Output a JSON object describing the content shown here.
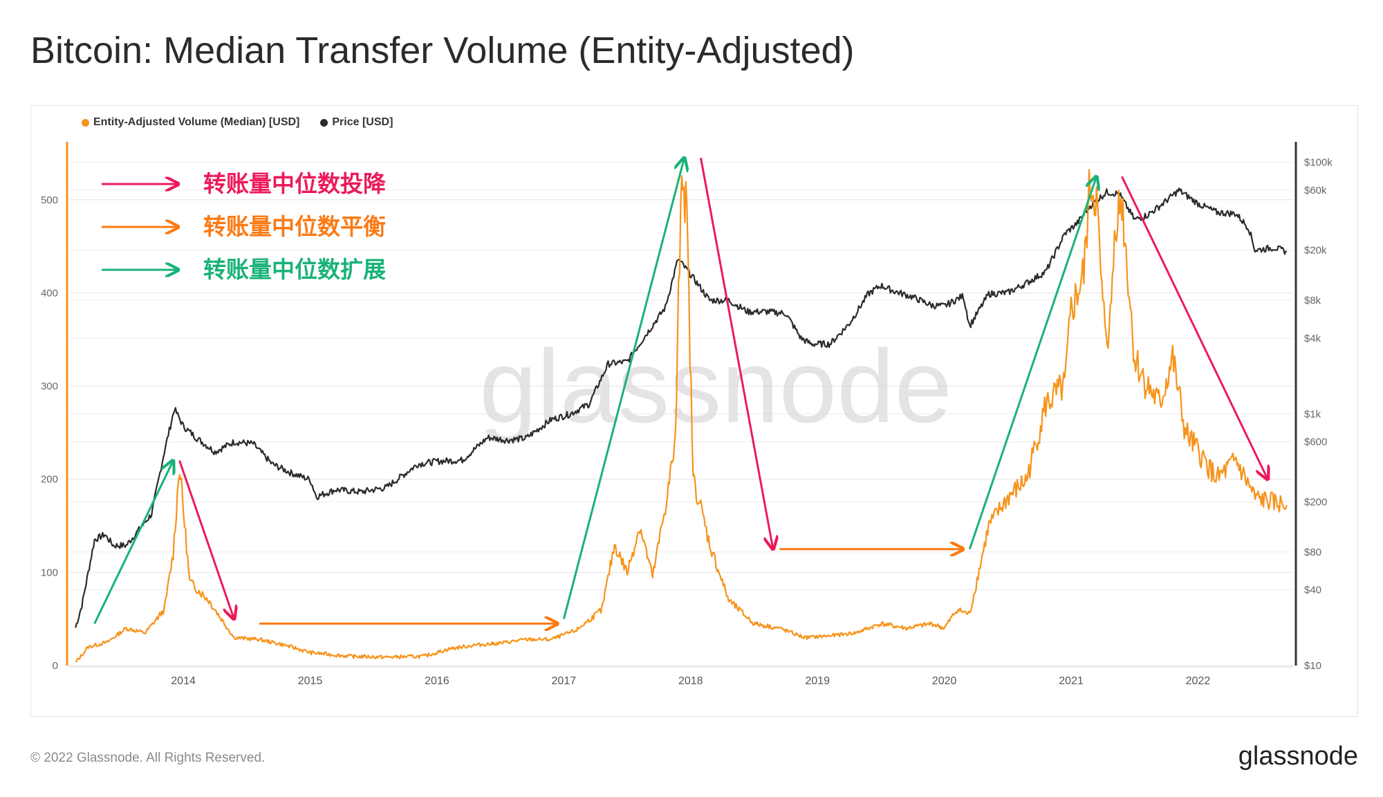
{
  "title": "Bitcoin: Median Transfer Volume (Entity-Adjusted)",
  "footer": {
    "copyright": "© 2022 Glassnode. All Rights Reserved.",
    "logo": "glassnode",
    "watermark": "glassnode"
  },
  "colors": {
    "volume": "#f7931a",
    "price": "#2b2b2b",
    "capitulation": "#ec1a5b",
    "equilibrium": "#fb7a14",
    "expansion": "#19b278"
  },
  "annotations": {
    "capitulation": "转账量中位数投降",
    "equilibrium": "转账量中位数平衡",
    "expansion": "转账量中位数扩展"
  },
  "chart_data": {
    "type": "line",
    "title": "Bitcoin: Median Transfer Volume (Entity-Adjusted)",
    "legend_position": "top-left",
    "grid": true,
    "x_range": [
      "2013-02",
      "2022-10"
    ],
    "x_ticks": [
      "2014",
      "2015",
      "2016",
      "2017",
      "2018",
      "2019",
      "2020",
      "2021",
      "2022"
    ],
    "y_left": {
      "ticks": [
        0,
        100,
        200,
        300,
        400,
        500
      ],
      "range": [
        0,
        560
      ]
    },
    "y_right": {
      "scale": "log",
      "ticks": [
        10,
        40,
        80,
        200,
        600,
        1000,
        4000,
        8000,
        20000,
        60000,
        100000
      ],
      "tick_labels": [
        "$10",
        "$40",
        "$80",
        "$200",
        "$600",
        "$1k",
        "$4k",
        "$8k",
        "$20k",
        "$60k",
        "$100k"
      ],
      "range": [
        10,
        140000
      ]
    },
    "series": [
      {
        "name": "Entity-Adjusted Volume (Median) [USD]",
        "axis": "left",
        "x": [
          2013.15,
          2013.25,
          2013.4,
          2013.55,
          2013.7,
          2013.85,
          2013.92,
          2013.97,
          2014.05,
          2014.2,
          2014.4,
          2014.6,
          2014.8,
          2015.0,
          2015.3,
          2015.6,
          2015.9,
          2016.1,
          2016.3,
          2016.5,
          2016.7,
          2016.9,
          2017.1,
          2017.3,
          2017.4,
          2017.5,
          2017.6,
          2017.7,
          2017.8,
          2017.88,
          2017.93,
          2017.97,
          2018.02,
          2018.08,
          2018.15,
          2018.3,
          2018.5,
          2018.7,
          2018.9,
          2019.1,
          2019.3,
          2019.5,
          2019.7,
          2019.9,
          2020.0,
          2020.1,
          2020.2,
          2020.35,
          2020.5,
          2020.65,
          2020.8,
          2020.95,
          2021.0,
          2021.1,
          2021.15,
          2021.2,
          2021.25,
          2021.3,
          2021.35,
          2021.4,
          2021.5,
          2021.6,
          2021.7,
          2021.8,
          2021.9,
          2022.0,
          2022.15,
          2022.3,
          2022.45,
          2022.6,
          2022.7
        ],
        "values": [
          3,
          20,
          25,
          40,
          35,
          60,
          120,
          215,
          90,
          70,
          30,
          28,
          22,
          14,
          10,
          9,
          10,
          18,
          22,
          24,
          28,
          28,
          38,
          60,
          130,
          100,
          150,
          95,
          170,
          240,
          545,
          480,
          200,
          170,
          130,
          70,
          45,
          40,
          30,
          32,
          35,
          45,
          40,
          45,
          40,
          60,
          55,
          150,
          180,
          200,
          280,
          300,
          380,
          420,
          520,
          500,
          380,
          350,
          480,
          500,
          330,
          300,
          280,
          330,
          250,
          230,
          200,
          220,
          180,
          175,
          172
        ]
      },
      {
        "name": "Price [USD]",
        "axis": "right",
        "x": [
          2013.15,
          2013.2,
          2013.3,
          2013.38,
          2013.45,
          2013.55,
          2013.65,
          2013.75,
          2013.85,
          2013.93,
          2014.0,
          2014.1,
          2014.25,
          2014.4,
          2014.55,
          2014.7,
          2014.85,
          2015.0,
          2015.05,
          2015.2,
          2015.4,
          2015.6,
          2015.85,
          2016.0,
          2016.2,
          2016.4,
          2016.55,
          2016.7,
          2016.9,
          2017.05,
          2017.2,
          2017.35,
          2017.5,
          2017.65,
          2017.8,
          2017.9,
          2017.97,
          2018.05,
          2018.15,
          2018.3,
          2018.45,
          2018.6,
          2018.75,
          2018.87,
          2018.95,
          2019.1,
          2019.25,
          2019.4,
          2019.5,
          2019.6,
          2019.75,
          2019.9,
          2020.0,
          2020.15,
          2020.2,
          2020.35,
          2020.5,
          2020.65,
          2020.8,
          2020.95,
          2021.05,
          2021.15,
          2021.28,
          2021.38,
          2021.5,
          2021.6,
          2021.7,
          2021.85,
          2022.0,
          2022.15,
          2022.3,
          2022.4,
          2022.45,
          2022.6,
          2022.7
        ],
        "values": [
          20,
          30,
          100,
          110,
          90,
          90,
          120,
          160,
          500,
          1100,
          800,
          650,
          500,
          600,
          580,
          400,
          340,
          300,
          220,
          250,
          240,
          260,
          400,
          420,
          430,
          650,
          620,
          640,
          900,
          1000,
          1200,
          2500,
          2600,
          4300,
          7000,
          17000,
          14000,
          11000,
          8000,
          8000,
          6500,
          6500,
          6300,
          4000,
          3600,
          3600,
          5200,
          9000,
          10500,
          9500,
          8500,
          7300,
          7200,
          8700,
          5000,
          9000,
          9200,
          11000,
          13500,
          27000,
          33000,
          45000,
          58000,
          56000,
          35000,
          38000,
          45000,
          60000,
          47000,
          40000,
          39000,
          30000,
          20000,
          21000,
          19500
        ]
      }
    ],
    "annotation_arrows": [
      {
        "type": "expansion",
        "from": [
          "2013.3",
          45
        ],
        "to": [
          "2013.92",
          220
        ]
      },
      {
        "type": "capitulation",
        "from": [
          "2013.97",
          220
        ],
        "to": [
          "2014.4",
          50
        ]
      },
      {
        "type": "equilibrium",
        "from": [
          "2014.6",
          45
        ],
        "to": [
          "2016.95",
          45
        ]
      },
      {
        "type": "expansion",
        "from": [
          "2017.0",
          50
        ],
        "to": [
          "2017.95",
          545
        ]
      },
      {
        "type": "capitulation",
        "from": [
          "2018.08",
          545
        ],
        "to": [
          "2018.65",
          125
        ]
      },
      {
        "type": "equilibrium",
        "from": [
          "2018.7",
          125
        ],
        "to": [
          "2020.15",
          125
        ]
      },
      {
        "type": "expansion",
        "from": [
          "2020.2",
          125
        ],
        "to": [
          "2021.2",
          525
        ]
      },
      {
        "type": "capitulation",
        "from": [
          "2021.4",
          525
        ],
        "to": [
          "2022.55",
          200
        ]
      }
    ]
  }
}
